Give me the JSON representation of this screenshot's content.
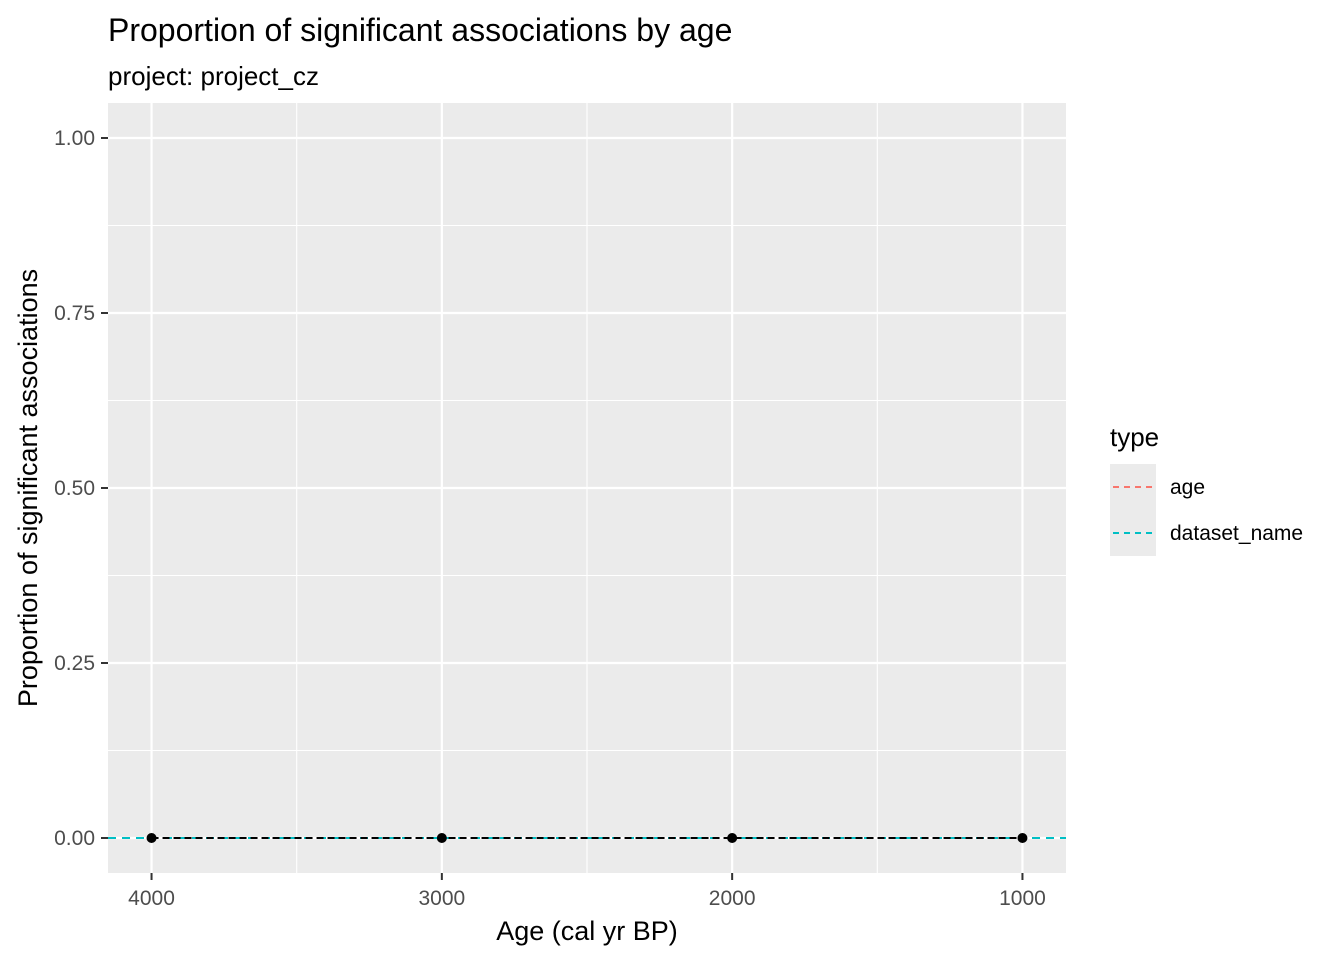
{
  "chart_data": {
    "type": "line",
    "title": "Proportion of significant associations by age",
    "subtitle": "project: project_cz",
    "xlabel": "Age (cal yr BP)",
    "ylabel": "Proportion of significant associations",
    "x_reversed": true,
    "xlim": [
      4150,
      850
    ],
    "ylim": [
      -0.05,
      1.05
    ],
    "x_ticks": [
      4000,
      3000,
      2000,
      1000
    ],
    "x_tick_labels": [
      "4000",
      "3000",
      "2000",
      "1000"
    ],
    "y_ticks": [
      0,
      0.25,
      0.5,
      0.75,
      1.0
    ],
    "y_tick_labels": [
      "0.00",
      "0.25",
      "0.50",
      "0.75",
      "1.00"
    ],
    "x": [
      4000,
      3000,
      2000,
      1000
    ],
    "series": [
      {
        "values": [
          0,
          0,
          0,
          0
        ],
        "color": "#000000",
        "style": "solid-with-points"
      }
    ],
    "reference_lines": [
      {
        "name": "age",
        "y": 0,
        "color": "#F8766D",
        "dash": "dashed"
      },
      {
        "name": "dataset_name",
        "y": 0,
        "color": "#00BFC4",
        "dash": "dashed"
      }
    ],
    "grid": true,
    "panel_background": "#EBEBEB",
    "legend": {
      "title": "type",
      "position": "right",
      "entries": [
        {
          "label": "age",
          "color": "#F8766D"
        },
        {
          "label": "dataset_name",
          "color": "#00BFC4"
        }
      ]
    }
  }
}
